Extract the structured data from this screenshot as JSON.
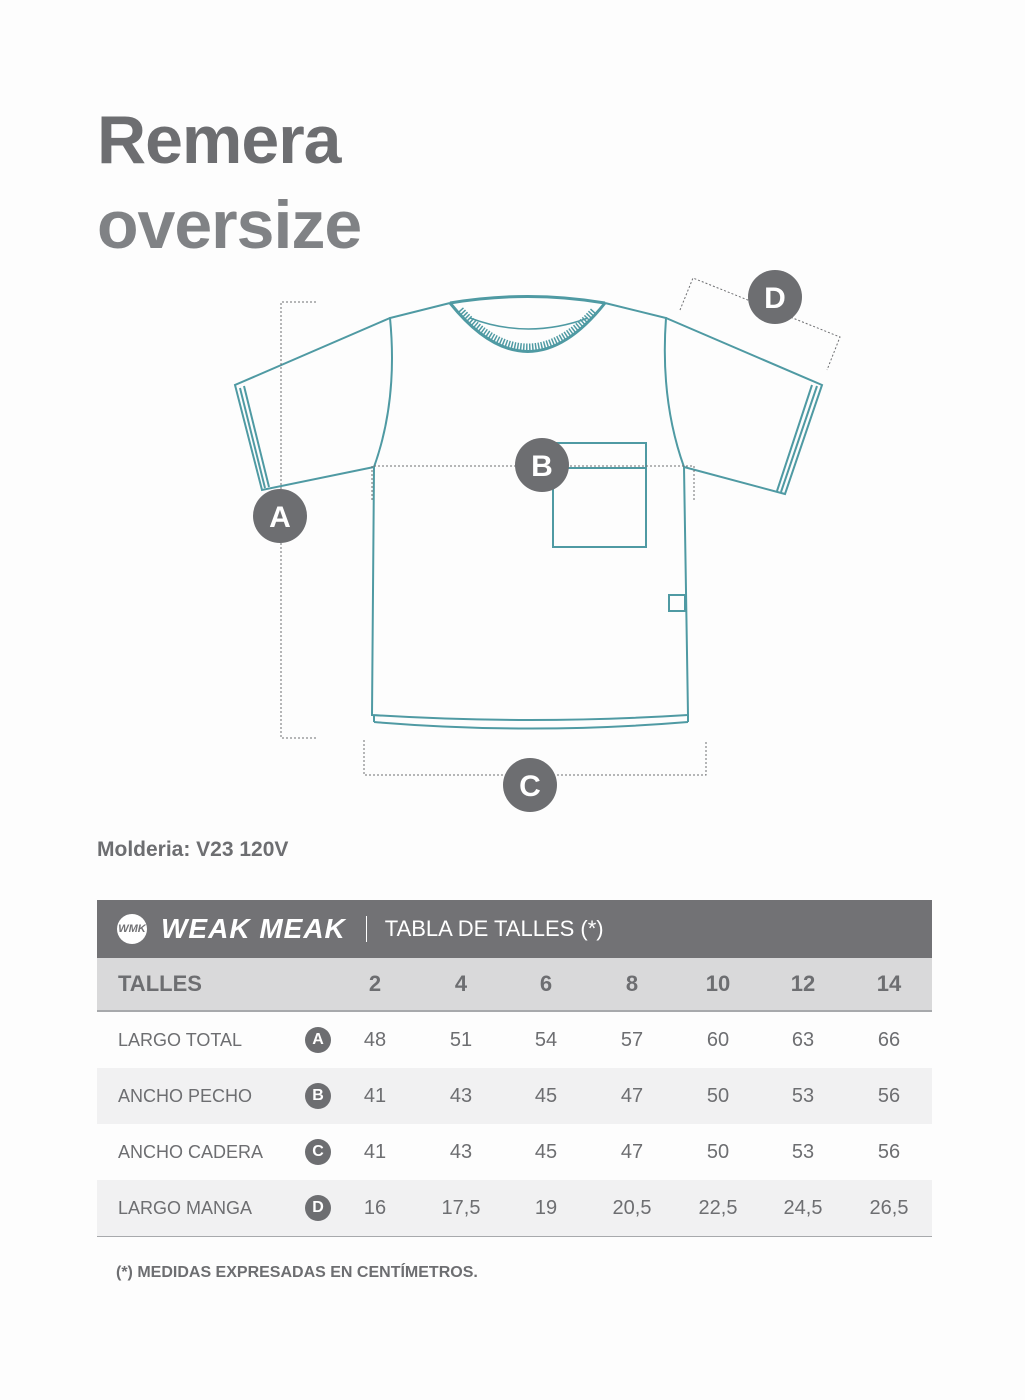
{
  "title": {
    "line1": "Remera",
    "line2": "oversize"
  },
  "diagram": {
    "labels": [
      "A",
      "B",
      "C",
      "D"
    ],
    "line_color": "#4f9aa3"
  },
  "molderia": "Molderia: V23 120V",
  "table": {
    "brand": "WEAK MEAK",
    "logo_text": "WMK",
    "title": "TABLA DE TALLES (*)",
    "header_label": "TALLES",
    "sizes": [
      "2",
      "4",
      "6",
      "8",
      "10",
      "12",
      "14"
    ],
    "rows": [
      {
        "label": "LARGO TOTAL",
        "badge": "A",
        "values": [
          "48",
          "51",
          "54",
          "57",
          "60",
          "63",
          "66"
        ]
      },
      {
        "label": "ANCHO PECHO",
        "badge": "B",
        "values": [
          "41",
          "43",
          "45",
          "47",
          "50",
          "53",
          "56"
        ]
      },
      {
        "label": "ANCHO CADERA",
        "badge": "C",
        "values": [
          "41",
          "43",
          "45",
          "47",
          "50",
          "53",
          "56"
        ]
      },
      {
        "label": "LARGO MANGA",
        "badge": "D",
        "values": [
          "16",
          "17,5",
          "19",
          "20,5",
          "22,5",
          "24,5",
          "26,5"
        ]
      }
    ]
  },
  "note": "(*) MEDIDAS EXPRESADAS EN CENTÍMETROS.",
  "colors": {
    "header_bg": "#727275",
    "subheader_bg": "#d9d9da",
    "alt_row": "#f1f1f2",
    "text": "#6d6e71"
  }
}
